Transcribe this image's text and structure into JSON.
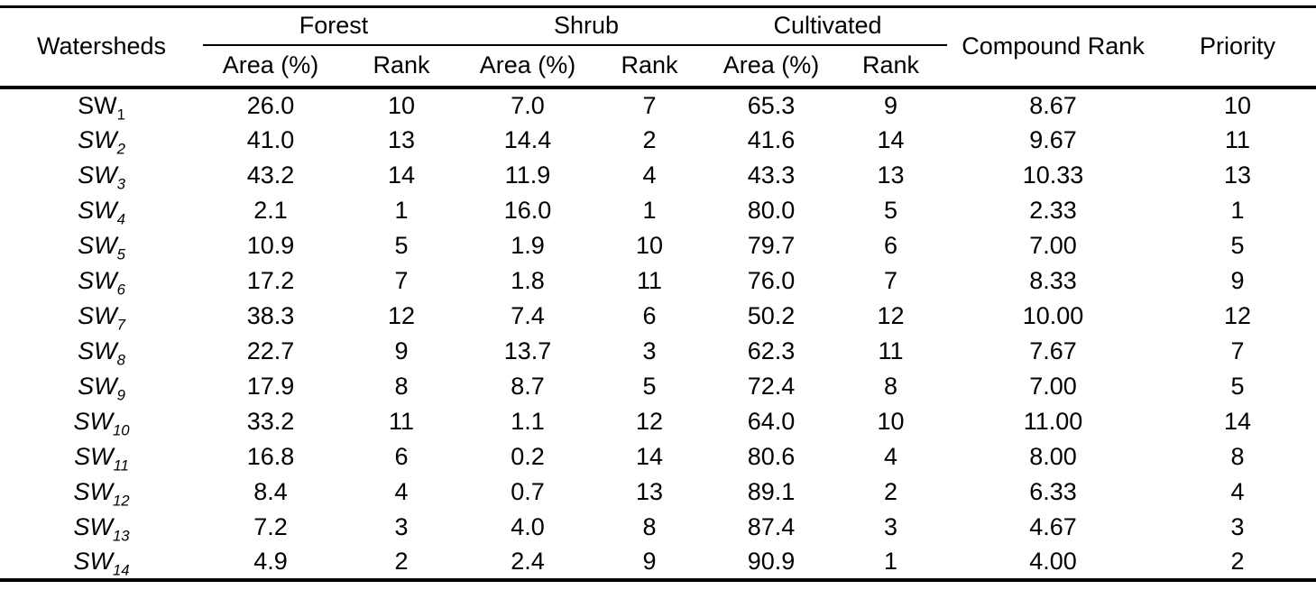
{
  "style": {
    "background": "#ffffff",
    "text_color": "#000000",
    "rule_color": "#000000"
  },
  "table": {
    "header": {
      "watersheds": "Watersheds",
      "groups": [
        {
          "label": "Forest"
        },
        {
          "label": "Shrub"
        },
        {
          "label": "Cultivated"
        }
      ],
      "sub_area": "Area (%)",
      "sub_rank": "Rank",
      "compound_rank": "Compound Rank",
      "priority": "Priority"
    },
    "rows": [
      {
        "watershed_base": "SW",
        "watershed_sub": "1",
        "italic": false,
        "cells": [
          "26.0",
          "10",
          "7.0",
          "7",
          "65.3",
          "9",
          "8.67",
          "10"
        ]
      },
      {
        "watershed_base": "SW",
        "watershed_sub": "2",
        "italic": true,
        "cells": [
          "41.0",
          "13",
          "14.4",
          "2",
          "41.6",
          "14",
          "9.67",
          "11"
        ]
      },
      {
        "watershed_base": "SW",
        "watershed_sub": "3",
        "italic": true,
        "cells": [
          "43.2",
          "14",
          "11.9",
          "4",
          "43.3",
          "13",
          "10.33",
          "13"
        ]
      },
      {
        "watershed_base": "SW",
        "watershed_sub": "4",
        "italic": true,
        "cells": [
          "2.1",
          "1",
          "16.0",
          "1",
          "80.0",
          "5",
          "2.33",
          "1"
        ]
      },
      {
        "watershed_base": "SW",
        "watershed_sub": "5",
        "italic": true,
        "cells": [
          "10.9",
          "5",
          "1.9",
          "10",
          "79.7",
          "6",
          "7.00",
          "5"
        ]
      },
      {
        "watershed_base": "SW",
        "watershed_sub": "6",
        "italic": true,
        "cells": [
          "17.2",
          "7",
          "1.8",
          "11",
          "76.0",
          "7",
          "8.33",
          "9"
        ]
      },
      {
        "watershed_base": "SW",
        "watershed_sub": "7",
        "italic": true,
        "cells": [
          "38.3",
          "12",
          "7.4",
          "6",
          "50.2",
          "12",
          "10.00",
          "12"
        ]
      },
      {
        "watershed_base": "SW",
        "watershed_sub": "8",
        "italic": true,
        "cells": [
          "22.7",
          "9",
          "13.7",
          "3",
          "62.3",
          "11",
          "7.67",
          "7"
        ]
      },
      {
        "watershed_base": "SW",
        "watershed_sub": "9",
        "italic": true,
        "cells": [
          "17.9",
          "8",
          "8.7",
          "5",
          "72.4",
          "8",
          "7.00",
          "5"
        ]
      },
      {
        "watershed_base": "SW",
        "watershed_sub": "10",
        "italic": true,
        "cells": [
          "33.2",
          "11",
          "1.1",
          "12",
          "64.0",
          "10",
          "11.00",
          "14"
        ]
      },
      {
        "watershed_base": "SW",
        "watershed_sub": "11",
        "italic": true,
        "cells": [
          "16.8",
          "6",
          "0.2",
          "14",
          "80.6",
          "4",
          "8.00",
          "8"
        ]
      },
      {
        "watershed_base": "SW",
        "watershed_sub": "12",
        "italic": true,
        "cells": [
          "8.4",
          "4",
          "0.7",
          "13",
          "89.1",
          "2",
          "6.33",
          "4"
        ]
      },
      {
        "watershed_base": "SW",
        "watershed_sub": "13",
        "italic": true,
        "cells": [
          "7.2",
          "3",
          "4.0",
          "8",
          "87.4",
          "3",
          "4.67",
          "3"
        ]
      },
      {
        "watershed_base": "SW",
        "watershed_sub": "14",
        "italic": true,
        "cells": [
          "4.9",
          "2",
          "2.4",
          "9",
          "90.9",
          "1",
          "4.00",
          "2"
        ]
      }
    ]
  }
}
